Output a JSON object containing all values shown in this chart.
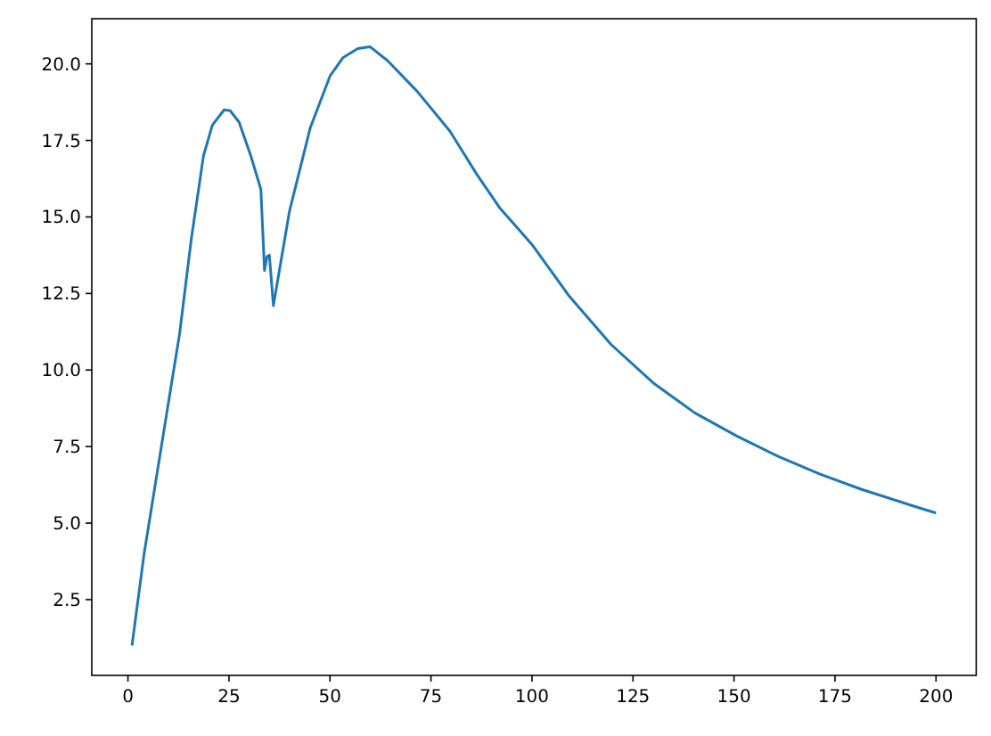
{
  "chart_data": {
    "type": "line",
    "xlim": [
      -8.95,
      209.95
    ],
    "ylim": [
      0.025,
      21.475
    ],
    "xticks": [
      0,
      25,
      50,
      75,
      100,
      125,
      150,
      175,
      200
    ],
    "yticks": [
      {
        "value": 2.5,
        "label": "2.5"
      },
      {
        "value": 5,
        "label": "5.0"
      },
      {
        "value": 7.5,
        "label": "7.5"
      },
      {
        "value": 10,
        "label": "10.0"
      },
      {
        "value": 12.5,
        "label": "12.5"
      },
      {
        "value": 15,
        "label": "15.0"
      },
      {
        "value": 17.5,
        "label": "17.5"
      },
      {
        "value": 20,
        "label": "20.0"
      }
    ],
    "series": [
      {
        "color": "#1f77b4",
        "x": [
          1,
          4,
          7.9,
          12.8,
          15.7,
          18.7,
          20.9,
          23.8,
          25.3,
          27.5,
          30.4,
          32.9,
          33.8,
          34.4,
          35,
          36,
          37.8,
          40,
          45.1,
          50,
          53.2,
          56.9,
          59.9,
          64.3,
          71.6,
          79.7,
          86.3,
          92,
          100,
          109.3,
          119.6,
          130,
          140.3,
          150.6,
          160.9,
          171.3,
          181.6,
          193.4,
          200
        ],
        "values": [
          1,
          4,
          7.2,
          11.2,
          14.3,
          17,
          18,
          18.5,
          18.47,
          18.1,
          17,
          15.9,
          13.25,
          13.7,
          13.75,
          12.1,
          13.5,
          15.2,
          17.9,
          19.6,
          20.2,
          20.5,
          20.56,
          20.1,
          19.1,
          17.8,
          16.4,
          15.3,
          14.1,
          12.4,
          10.83,
          9.58,
          8.6,
          7.85,
          7.18,
          6.6,
          6.1,
          5.6,
          5.33
        ]
      }
    ]
  }
}
